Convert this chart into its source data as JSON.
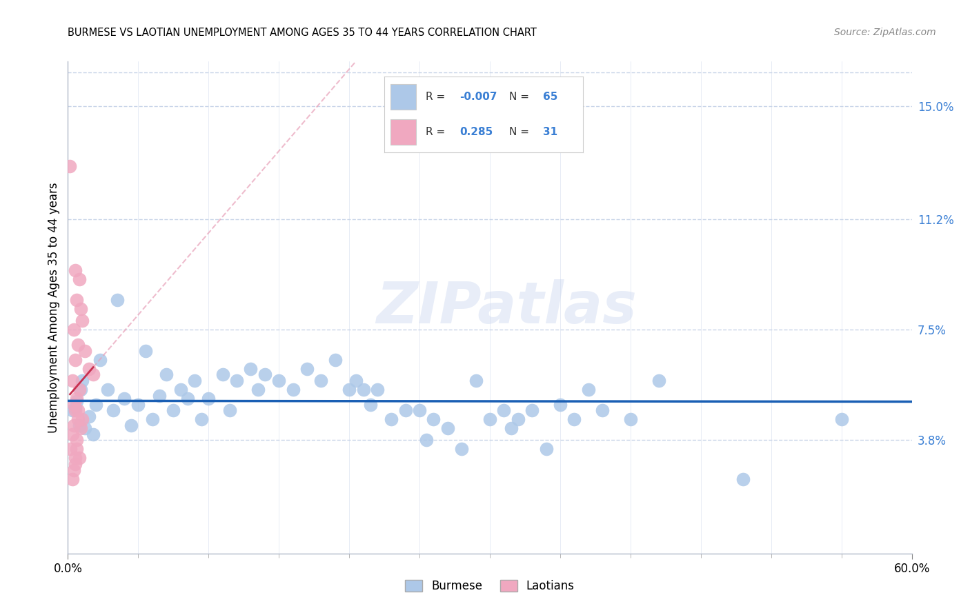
{
  "title": "BURMESE VS LAOTIAN UNEMPLOYMENT AMONG AGES 35 TO 44 YEARS CORRELATION CHART",
  "source": "Source: ZipAtlas.com",
  "ylabel": "Unemployment Among Ages 35 to 44 years",
  "xmin": 0.0,
  "xmax": 60.0,
  "ymin": 0.0,
  "ymax": 16.5,
  "right_yticks": [
    3.8,
    7.5,
    11.2,
    15.0
  ],
  "right_ytick_labels": [
    "3.8%",
    "7.5%",
    "11.2%",
    "15.0%"
  ],
  "watermark": "ZIPatlas",
  "burmese_color": "#adc8e8",
  "burmese_line_color": "#1a5fb4",
  "laotians_color": "#f0a8c0",
  "laotians_line_color": "#c83050",
  "laotians_dash_color": "#e8a0b8",
  "grid_color": "#c8d4e8",
  "background_color": "#ffffff",
  "legend_text_color": "#333333",
  "legend_value_color": "#3a7fd4",
  "burmese_scatter": [
    [
      0.3,
      4.8
    ],
    [
      0.5,
      4.9
    ],
    [
      0.6,
      5.1
    ],
    [
      0.8,
      4.3
    ],
    [
      0.9,
      5.5
    ],
    [
      1.0,
      5.8
    ],
    [
      1.2,
      4.2
    ],
    [
      1.5,
      4.6
    ],
    [
      1.8,
      4.0
    ],
    [
      2.0,
      5.0
    ],
    [
      2.3,
      6.5
    ],
    [
      2.8,
      5.5
    ],
    [
      3.2,
      4.8
    ],
    [
      3.5,
      8.5
    ],
    [
      4.0,
      5.2
    ],
    [
      4.5,
      4.3
    ],
    [
      5.0,
      5.0
    ],
    [
      5.5,
      6.8
    ],
    [
      6.0,
      4.5
    ],
    [
      6.5,
      5.3
    ],
    [
      7.0,
      6.0
    ],
    [
      7.5,
      4.8
    ],
    [
      8.0,
      5.5
    ],
    [
      8.5,
      5.2
    ],
    [
      9.0,
      5.8
    ],
    [
      9.5,
      4.5
    ],
    [
      10.0,
      5.2
    ],
    [
      11.0,
      6.0
    ],
    [
      11.5,
      4.8
    ],
    [
      12.0,
      5.8
    ],
    [
      13.0,
      6.2
    ],
    [
      13.5,
      5.5
    ],
    [
      14.0,
      6.0
    ],
    [
      15.0,
      5.8
    ],
    [
      16.0,
      5.5
    ],
    [
      17.0,
      6.2
    ],
    [
      18.0,
      5.8
    ],
    [
      19.0,
      6.5
    ],
    [
      20.0,
      5.5
    ],
    [
      20.5,
      5.8
    ],
    [
      21.0,
      5.5
    ],
    [
      21.5,
      5.0
    ],
    [
      22.0,
      5.5
    ],
    [
      23.0,
      4.5
    ],
    [
      24.0,
      4.8
    ],
    [
      25.0,
      4.8
    ],
    [
      25.5,
      3.8
    ],
    [
      26.0,
      4.5
    ],
    [
      27.0,
      4.2
    ],
    [
      28.0,
      3.5
    ],
    [
      29.0,
      5.8
    ],
    [
      30.0,
      4.5
    ],
    [
      31.0,
      4.8
    ],
    [
      31.5,
      4.2
    ],
    [
      32.0,
      4.5
    ],
    [
      33.0,
      4.8
    ],
    [
      34.0,
      3.5
    ],
    [
      35.0,
      5.0
    ],
    [
      36.0,
      4.5
    ],
    [
      37.0,
      5.5
    ],
    [
      38.0,
      4.8
    ],
    [
      40.0,
      4.5
    ],
    [
      42.0,
      5.8
    ],
    [
      48.0,
      2.5
    ],
    [
      55.0,
      4.5
    ]
  ],
  "laotians_scatter": [
    [
      0.15,
      13.0
    ],
    [
      0.5,
      9.5
    ],
    [
      0.8,
      9.2
    ],
    [
      0.6,
      8.5
    ],
    [
      0.9,
      8.2
    ],
    [
      0.4,
      7.5
    ],
    [
      1.0,
      7.8
    ],
    [
      0.7,
      7.0
    ],
    [
      1.2,
      6.8
    ],
    [
      0.5,
      6.5
    ],
    [
      1.5,
      6.2
    ],
    [
      0.3,
      5.8
    ],
    [
      0.8,
      5.5
    ],
    [
      0.6,
      5.2
    ],
    [
      0.4,
      5.0
    ],
    [
      0.5,
      4.8
    ],
    [
      0.7,
      4.5
    ],
    [
      0.4,
      4.3
    ],
    [
      0.9,
      4.2
    ],
    [
      0.3,
      4.0
    ],
    [
      0.6,
      3.8
    ],
    [
      0.2,
      3.5
    ],
    [
      0.8,
      3.2
    ],
    [
      0.5,
      3.0
    ],
    [
      0.4,
      2.8
    ],
    [
      1.8,
      6.0
    ],
    [
      0.7,
      4.8
    ],
    [
      1.0,
      4.5
    ],
    [
      0.6,
      3.5
    ],
    [
      0.5,
      3.2
    ],
    [
      0.3,
      2.5
    ]
  ],
  "xtick_positions": [
    0.0,
    60.0
  ],
  "xtick_labels": [
    "0.0%",
    "60.0%"
  ]
}
